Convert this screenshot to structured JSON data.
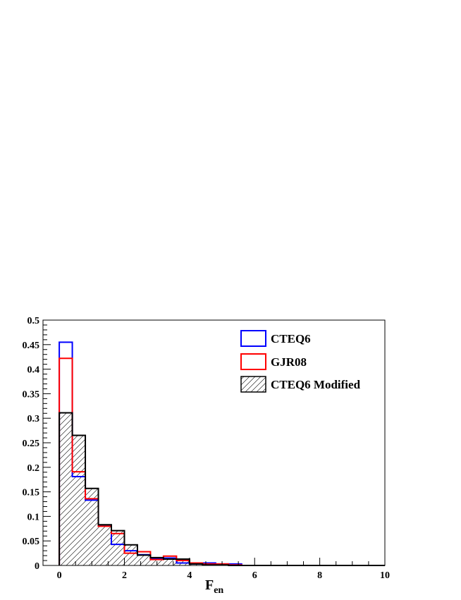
{
  "chart_data": {
    "type": "histogram",
    "xlabel_main": "F",
    "xlabel_sub": "en",
    "ylabel": "",
    "xlim": [
      -0.5,
      10
    ],
    "ylim": [
      0,
      0.5
    ],
    "x_ticks": [
      0,
      2,
      4,
      6,
      8,
      10
    ],
    "x_tick_labels": [
      "0",
      "2",
      "4",
      "6",
      "8",
      "10"
    ],
    "y_ticks": [
      0,
      0.05,
      0.1,
      0.15,
      0.2,
      0.25,
      0.3,
      0.35,
      0.4,
      0.45,
      0.5
    ],
    "y_tick_labels": [
      "0",
      "0.05",
      "0.1",
      "0.15",
      "0.2",
      "0.25",
      "0.3",
      "0.35",
      "0.4",
      "0.45",
      "0.5"
    ],
    "bin_edges": [
      0,
      0.4,
      0.8,
      1.2,
      1.6,
      2.0,
      2.4,
      2.8,
      3.2,
      3.6,
      4.0,
      4.4,
      4.8,
      5.2,
      5.6,
      6.0,
      6.4,
      6.8,
      7.2,
      7.6,
      8.0,
      8.4,
      8.8,
      9.2,
      9.6,
      10.0
    ],
    "legend_position": "top-right",
    "series": [
      {
        "name": "CTEQ6",
        "color": "#0000ff",
        "style": "line",
        "values": [
          0.455,
          0.181,
          0.133,
          0.082,
          0.043,
          0.03,
          0.022,
          0.014,
          0.015,
          0.005,
          0.003,
          0.005,
          0.003,
          0.003,
          0,
          0,
          0,
          0,
          0,
          0,
          0,
          0,
          0,
          0,
          0
        ]
      },
      {
        "name": "GJR08",
        "color": "#ff0000",
        "style": "line",
        "values": [
          0.422,
          0.191,
          0.136,
          0.08,
          0.065,
          0.025,
          0.028,
          0.012,
          0.019,
          0.01,
          0.005,
          0.003,
          0.003,
          0.001,
          0,
          0,
          0,
          0,
          0,
          0,
          0,
          0,
          0,
          0,
          0
        ]
      },
      {
        "name": "CTEQ6 Modified",
        "color": "#000000",
        "style": "hatched",
        "values": [
          0.311,
          0.265,
          0.157,
          0.083,
          0.071,
          0.042,
          0.021,
          0.016,
          0.013,
          0.013,
          0.003,
          0.001,
          0.001,
          0,
          0,
          0,
          0,
          0,
          0,
          0,
          0,
          0,
          0,
          0,
          0
        ]
      }
    ]
  }
}
